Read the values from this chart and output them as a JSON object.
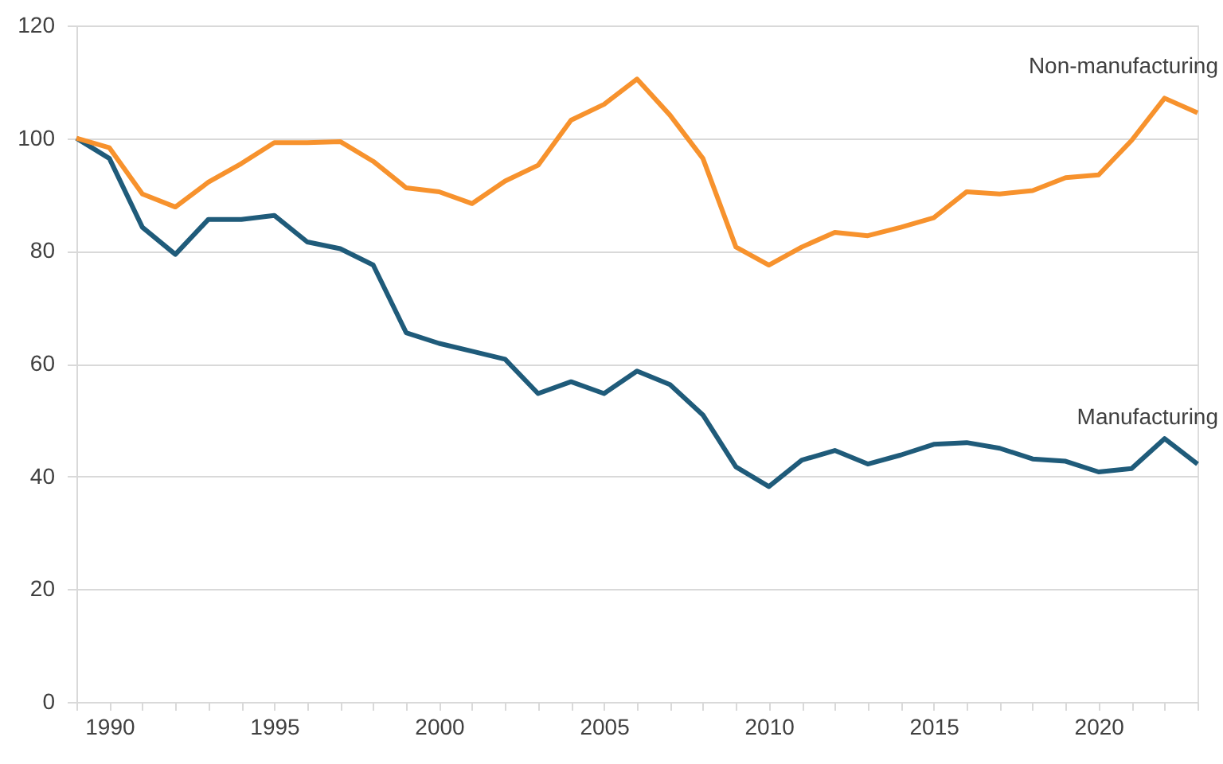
{
  "chart_data": {
    "type": "line",
    "x": [
      1989,
      1990,
      1991,
      1992,
      1993,
      1994,
      1995,
      1996,
      1997,
      1998,
      1999,
      2000,
      2001,
      2002,
      2003,
      2004,
      2005,
      2006,
      2007,
      2008,
      2009,
      2010,
      2011,
      2012,
      2013,
      2014,
      2015,
      2016,
      2017,
      2018,
      2019,
      2020,
      2021,
      2022,
      2023
    ],
    "series": [
      {
        "name": "Manufacturing",
        "color": "#1f5b7a",
        "values": [
          100,
          96.4,
          84.2,
          79.4,
          85.6,
          85.6,
          86.3,
          81.6,
          80.4,
          77.5,
          65.5,
          63.6,
          62.2,
          60.8,
          54.7,
          56.8,
          54.7,
          58.7,
          56.3,
          50.9,
          41.7,
          38.2,
          42.9,
          44.6,
          42.2,
          43.8,
          45.7,
          46.0,
          45.0,
          43.1,
          42.7,
          40.8,
          41.4,
          46.7,
          42.2
        ]
      },
      {
        "name": "Non-manufacturing",
        "color": "#f7922d",
        "values": [
          100,
          98.3,
          90.1,
          87.8,
          92.2,
          95.5,
          99.2,
          99.2,
          99.4,
          95.9,
          91.2,
          90.5,
          88.4,
          92.4,
          95.2,
          103.2,
          106.0,
          110.5,
          104.1,
          96.4,
          80.7,
          77.5,
          80.7,
          83.3,
          82.7,
          84.2,
          85.9,
          90.5,
          90.1,
          90.7,
          93.0,
          93.5,
          99.6,
          107.1,
          104.5
        ]
      }
    ],
    "xlim": [
      1989,
      2023
    ],
    "xticks": [
      {
        "value": 1989,
        "label": null
      },
      1990,
      {
        "value": 1991,
        "label": null
      },
      {
        "value": 1992,
        "label": null
      },
      {
        "value": 1993,
        "label": null
      },
      {
        "value": 1994,
        "label": null
      },
      1995,
      {
        "value": 1996,
        "label": null
      },
      {
        "value": 1997,
        "label": null
      },
      {
        "value": 1998,
        "label": null
      },
      {
        "value": 1999,
        "label": null
      },
      2000,
      {
        "value": 2001,
        "label": null
      },
      {
        "value": 2002,
        "label": null
      },
      {
        "value": 2003,
        "label": null
      },
      {
        "value": 2004,
        "label": null
      },
      2005,
      {
        "value": 2006,
        "label": null
      },
      {
        "value": 2007,
        "label": null
      },
      {
        "value": 2008,
        "label": null
      },
      {
        "value": 2009,
        "label": null
      },
      2010,
      {
        "value": 2011,
        "label": null
      },
      {
        "value": 2012,
        "label": null
      },
      {
        "value": 2013,
        "label": null
      },
      {
        "value": 2014,
        "label": null
      },
      2015,
      {
        "value": 2016,
        "label": null
      },
      {
        "value": 2017,
        "label": null
      },
      {
        "value": 2018,
        "label": null
      },
      {
        "value": 2019,
        "label": null
      },
      2020,
      {
        "value": 2021,
        "label": null
      },
      {
        "value": 2022,
        "label": null
      },
      {
        "value": 2023,
        "label": null
      }
    ],
    "ylim": [
      0,
      120
    ],
    "yticks": [
      0,
      20,
      40,
      60,
      80,
      100,
      120
    ],
    "grid": "y",
    "marker": "none",
    "line_style": "solid"
  }
}
